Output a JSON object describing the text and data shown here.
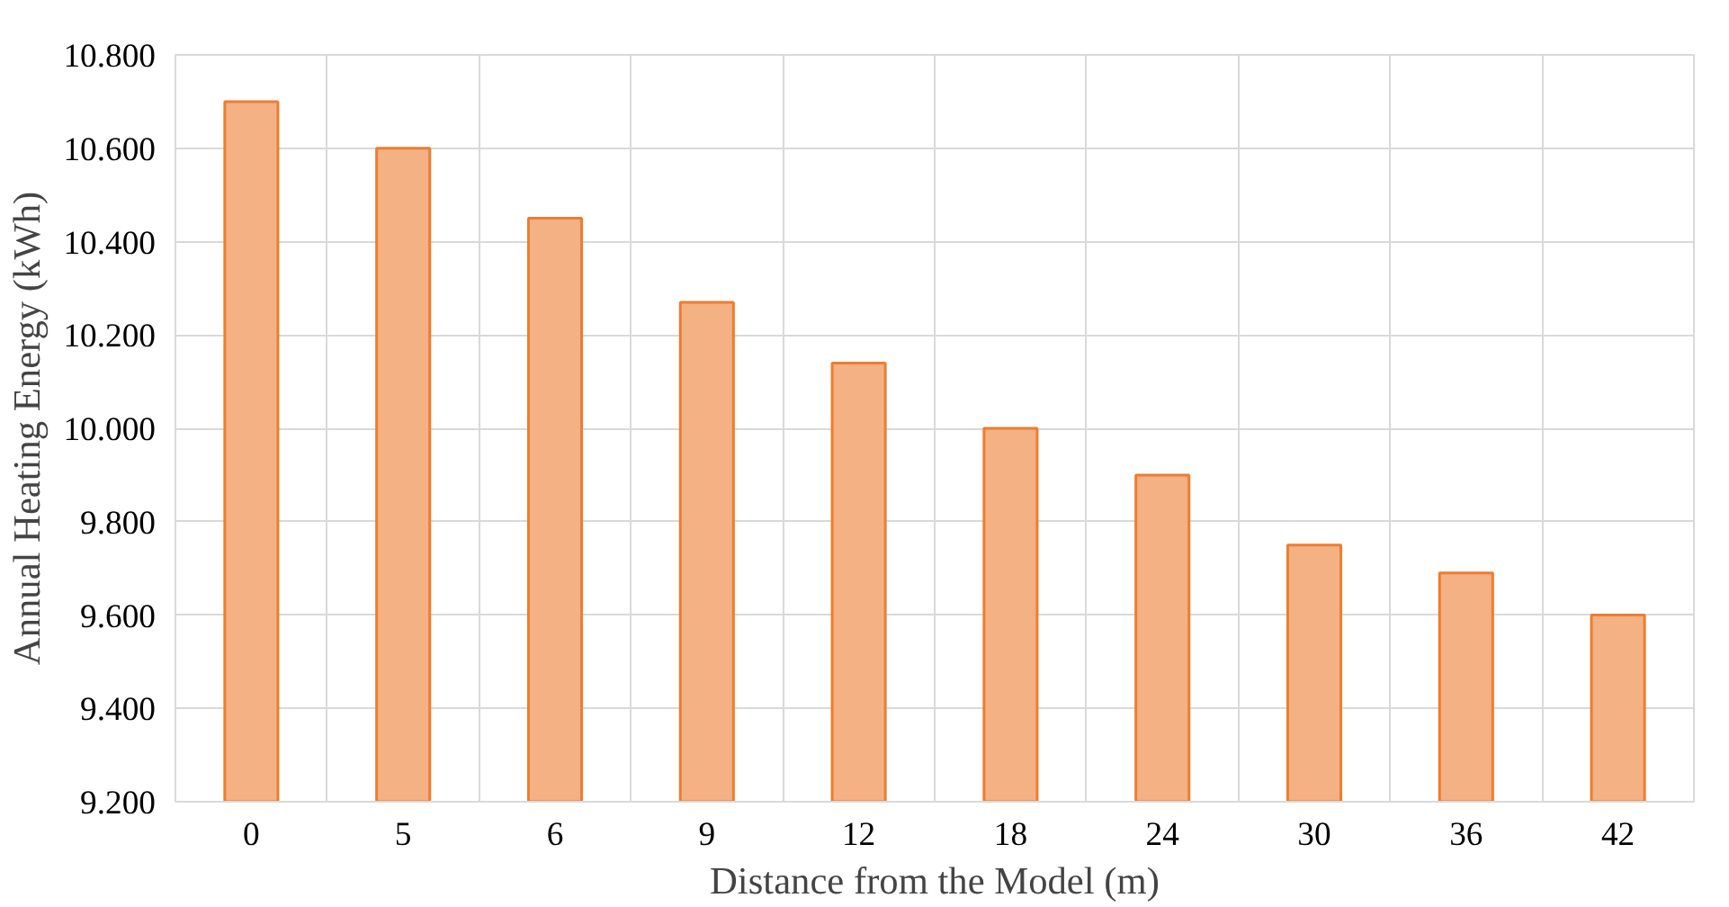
{
  "chart_data": {
    "type": "bar",
    "xlabel": "Distance from the Model (m)",
    "ylabel": "Annual Heating Energy (kWh)",
    "categories": [
      "0",
      "5",
      "6",
      "9",
      "12",
      "18",
      "24",
      "30",
      "36",
      "42"
    ],
    "values": [
      10700,
      10600,
      10450,
      10270,
      10140,
      10000,
      9900,
      9750,
      9690,
      9600
    ],
    "color": "#f4b183",
    "ylim": [
      9200,
      10800
    ],
    "yticks": [
      {
        "value": 9200,
        "label": "9.200"
      },
      {
        "value": 9400,
        "label": "9.400"
      },
      {
        "value": 9600,
        "label": "9.600"
      },
      {
        "value": 9800,
        "label": "9.800"
      },
      {
        "value": 10000,
        "label": "10.000"
      },
      {
        "value": 10200,
        "label": "10.200"
      },
      {
        "value": 10400,
        "label": "10.400"
      },
      {
        "value": 10600,
        "label": "10.600"
      },
      {
        "value": 10800,
        "label": "10.800"
      }
    ],
    "grid": true
  }
}
